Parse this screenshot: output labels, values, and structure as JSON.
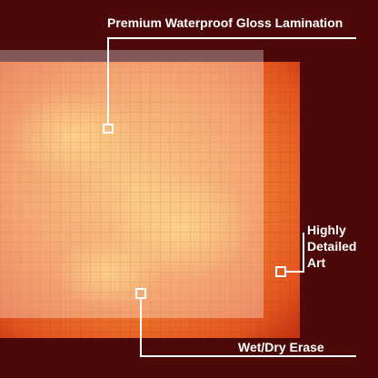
{
  "callouts": [
    {
      "label": "Premium Waterproof Gloss Lamination"
    },
    {
      "lines": [
        "Highly",
        "Detailed",
        "Art"
      ]
    },
    {
      "label": "Wet/Dry Erase"
    }
  ]
}
